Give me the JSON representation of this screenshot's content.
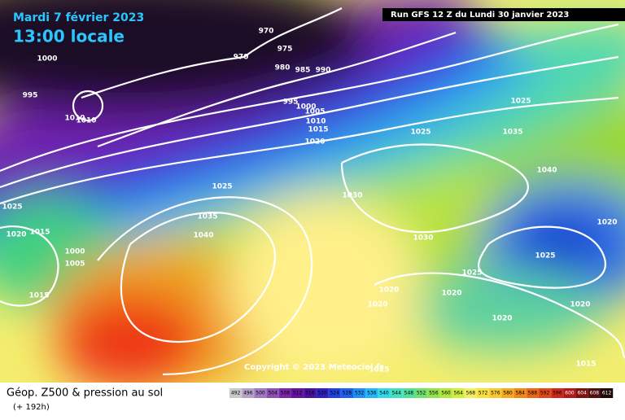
{
  "header": {
    "date": "Mardi 7 février 2023",
    "time": "13:00 locale",
    "run": "Run GFS 12 Z du Lundi 30 janvier 2023"
  },
  "map": {
    "isobar_labels": [
      970,
      975,
      970,
      980,
      985,
      990,
      1000,
      995,
      1010,
      1010,
      995,
      1000,
      1005,
      1010,
      1015,
      1020,
      1025,
      1025,
      1035,
      1040,
      1025,
      1030,
      1025,
      1035,
      1020,
      1015,
      1040,
      1030,
      1000,
      1005,
      1025,
      1025,
      1020,
      1020,
      1020,
      1020,
      1020,
      1015,
      1020,
      1025,
      1015
    ],
    "copyright": "Copyright © 2023 Meteociel.fr"
  },
  "footer": {
    "title": "Géop. Z500 & pression au sol",
    "subtitle": "(+ 192h)",
    "scale": [
      492,
      496,
      500,
      504,
      508,
      512,
      516,
      520,
      524,
      528,
      532,
      536,
      540,
      544,
      548,
      552,
      556,
      560,
      564,
      568,
      572,
      576,
      580,
      584,
      588,
      592,
      596,
      600,
      604,
      608,
      612
    ]
  }
}
